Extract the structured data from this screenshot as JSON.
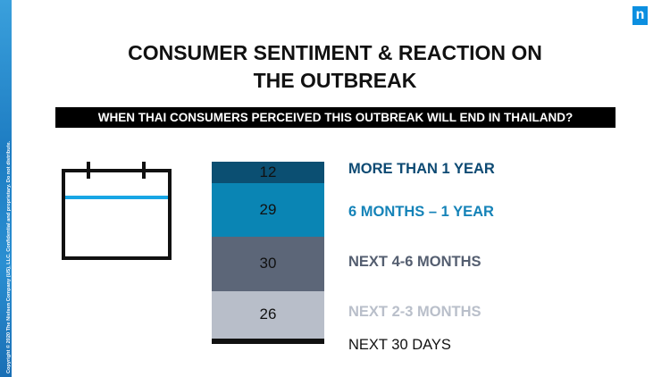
{
  "copyright": "Copyright © 2020 The Nielsen Company (US), LLC. Confidential and proprietary. Do not distribute.",
  "logo_letter": "n",
  "title_line1": "CONSUMER SENTIMENT & REACTION ON",
  "title_line2": "THE OUTBREAK",
  "question": "WHEN THAI CONSUMERS PERCEIVED THIS OUTBREAK WILL END IN THAILAND?",
  "icon": "calendar-icon",
  "chart_data": {
    "type": "bar",
    "stacked": true,
    "categories": [
      "MORE THAN 1 YEAR",
      "6 MONTHS – 1 YEAR",
      "NEXT 4-6 MONTHS",
      "NEXT 2-3 MONTHS",
      "NEXT 30 DAYS"
    ],
    "values": [
      12,
      29,
      30,
      26,
      3
    ],
    "data_labels": [
      "12",
      "29",
      "30",
      "26",
      ""
    ],
    "colors": [
      "#0b4f72",
      "#0a85b4",
      "#5c6678",
      "#b8bec9",
      "#111111"
    ],
    "label_colors": [
      "#0d4a73",
      "#1583b8",
      "#545e70",
      "#b9bfca",
      "#111111"
    ]
  }
}
